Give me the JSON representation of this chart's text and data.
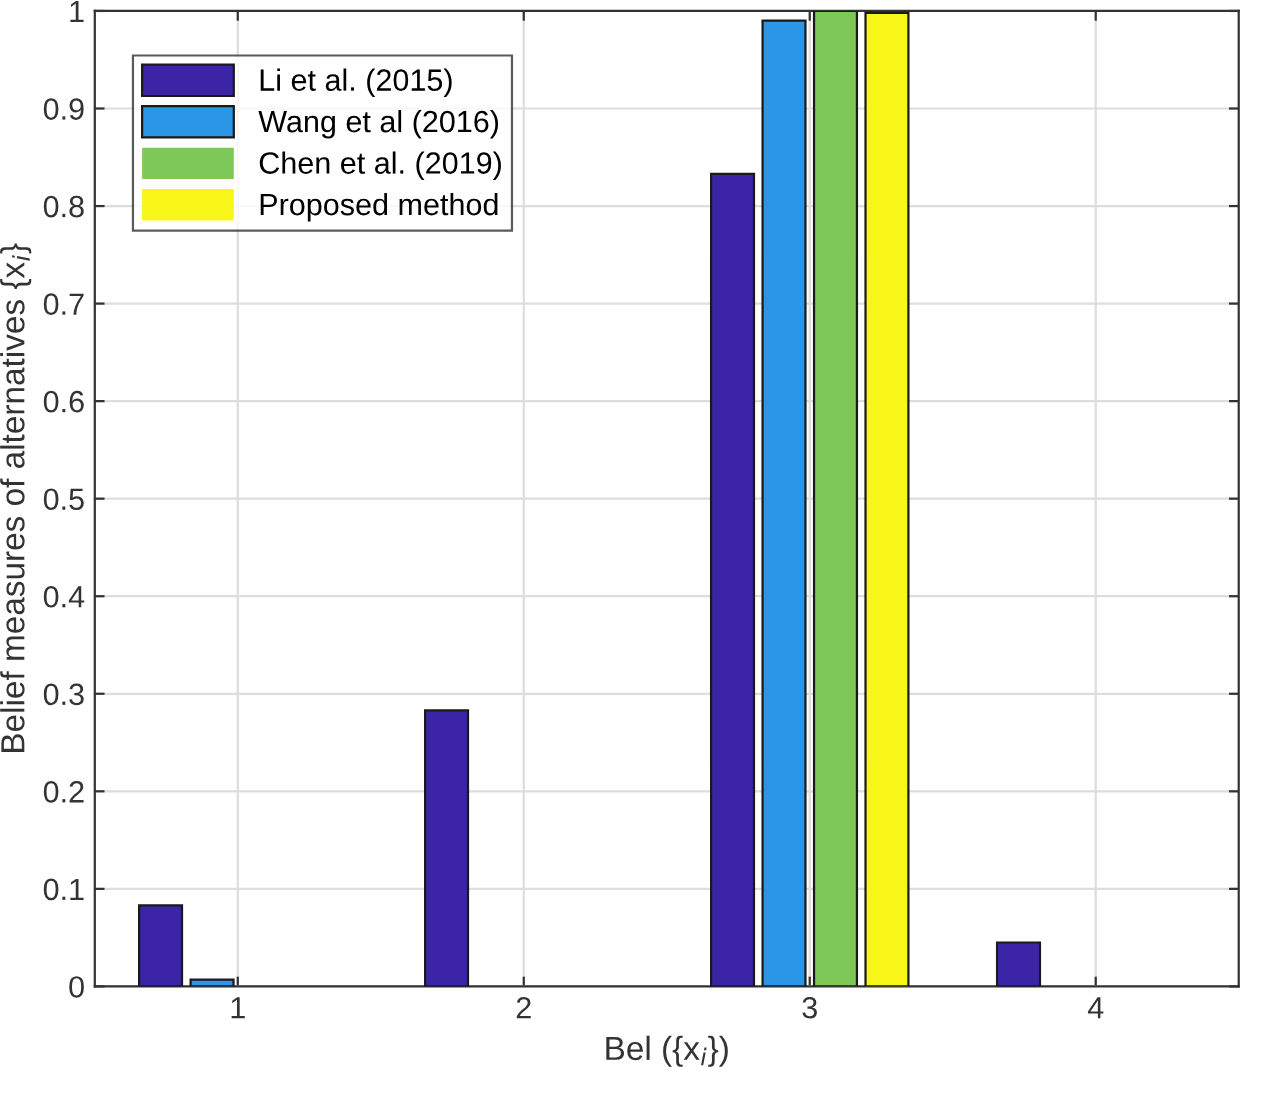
{
  "chart_data": {
    "type": "bar",
    "xlabel": "Bel ({x$_{i}$})",
    "ylabel": "Belief measures of alternatives {x$_{i}$}",
    "categories": [
      "1",
      "2",
      "3",
      "4"
    ],
    "series": [
      {
        "name": "Li et al. (2015)",
        "color": "#3b24a6",
        "values": [
          0.083,
          0.283,
          0.833,
          0.045
        ]
      },
      {
        "name": "Wang et al (2016)",
        "color": "#2b95e6",
        "values": [
          0.007,
          0,
          0.99,
          0
        ]
      },
      {
        "name": "Chen et al. (2019)",
        "color": "#7dc856",
        "values": [
          0,
          0,
          1.0,
          0
        ]
      },
      {
        "name": "Proposed method",
        "color": "#f8f518",
        "values": [
          0,
          0,
          0.998,
          0
        ]
      }
    ],
    "ylim": [
      0,
      1
    ],
    "yticks": [
      0,
      0.1,
      0.2,
      0.3,
      0.4,
      0.5,
      0.6,
      0.7,
      0.8,
      0.9,
      1
    ],
    "grid": true,
    "legend": "top left"
  }
}
